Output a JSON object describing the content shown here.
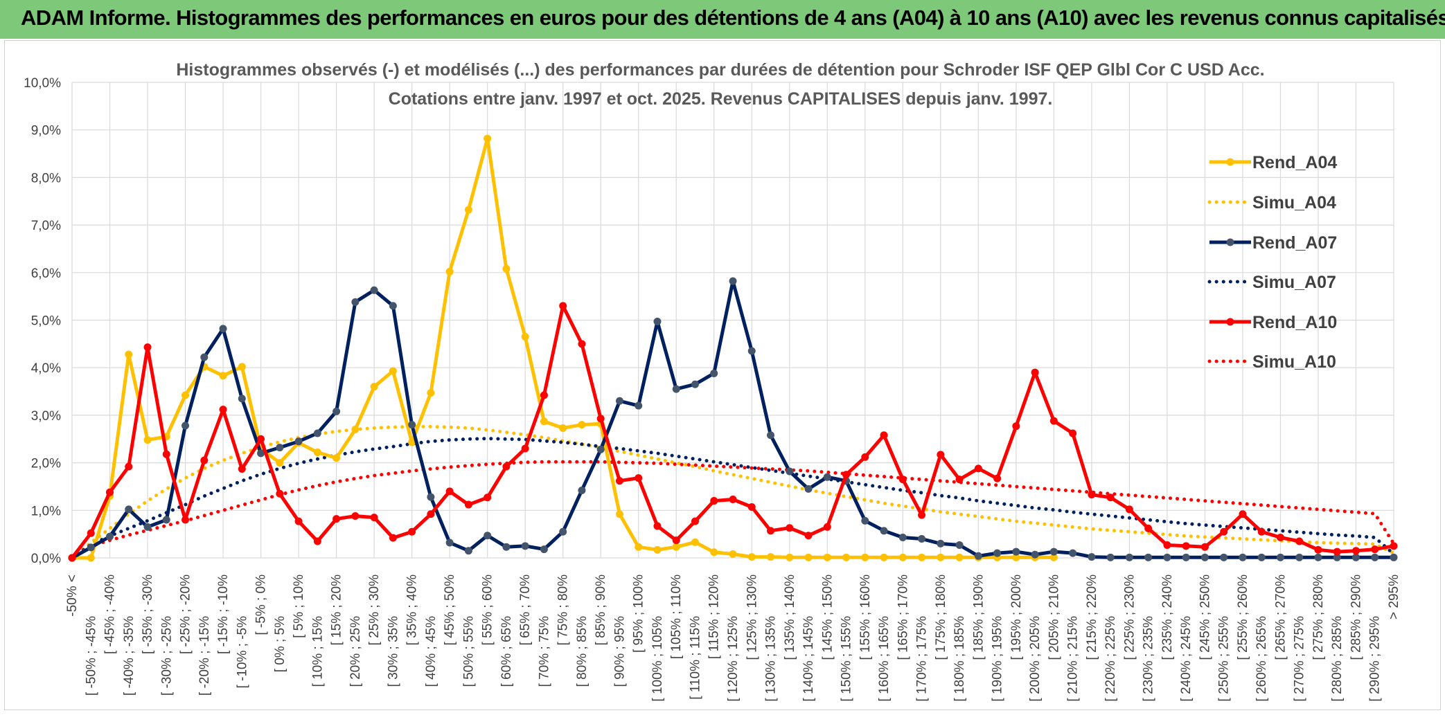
{
  "banner": {
    "title": "ADAM Informe. Histogrammes des performances en euros pour des détentions de 4 ans (A04) à 10 ans (A10) avec les revenus connus capitalisés"
  },
  "colors": {
    "banner": "#7ec87a",
    "A04": "#ffc000",
    "A07": "#002060",
    "A10": "#ff0000",
    "grid": "#d9d9d9"
  },
  "chart_data": {
    "type": "line",
    "title": "Histogrammes observés (-) et modélisés (...) des performances par durées de détention pour Schroder ISF QEP Glbl Cor C USD Acc.",
    "subtitle": "Cotations entre janv. 1997 et oct. 2025. Revenus CAPITALISES depuis janv. 1997.",
    "ylim": [
      0,
      10
    ],
    "yticks": [
      "0,0%",
      "1,0%",
      "2,0%",
      "3,0%",
      "4,0%",
      "5,0%",
      "6,0%",
      "7,0%",
      "8,0%",
      "9,0%",
      "10,0%"
    ],
    "categories": [
      "-50% <",
      "[ -50% ; -45%",
      "[ -45% ; -40%",
      "[ -40% ; -35%",
      "[ -35% ; -30%",
      "[ -30% ; -25%",
      "[ -25% ; -20%",
      "[ -20% ; -15%",
      "[ -15% ; -10%",
      "[ -10% ; -5%",
      "[ -5% ; 0%",
      "[ 0% ; 5%",
      "[ 5% ; 10%",
      "[ 10% ; 15%",
      "[ 15% ; 20%",
      "[ 20% ; 25%",
      "[ 25% ; 30%",
      "[ 30% ; 35%",
      "[ 35% ; 40%",
      "[ 40% ; 45%",
      "[ 45% ; 50%",
      "[ 50% ; 55%",
      "[ 55% ; 60%",
      "[ 60% ; 65%",
      "[ 65% ; 70%",
      "[ 70% ; 75%",
      "[ 75% ; 80%",
      "[ 80% ; 85%",
      "[ 85% ; 90%",
      "[ 90% ; 95%",
      "[ 95% ; 100%",
      "[ 100% ; 105%",
      "[ 105% ; 110%",
      "[ 110% ; 115%",
      "[ 115% ; 120%",
      "[ 120% ; 125%",
      "[ 125% ; 130%",
      "[ 130% ; 135%",
      "[ 135% ; 140%",
      "[ 140% ; 145%",
      "[ 145% ; 150%",
      "[ 150% ; 155%",
      "[ 155% ; 160%",
      "[ 160% ; 165%",
      "[ 165% ; 170%",
      "[ 170% ; 175%",
      "[ 175% ; 180%",
      "[ 180% ; 185%",
      "[ 185% ; 190%",
      "[ 190% ; 195%",
      "[ 195% ; 200%",
      "[ 200% ; 205%",
      "[ 205% ; 210%",
      "[ 210% ; 215%",
      "[ 215% ; 220%",
      "[ 220% ; 225%",
      "[ 225% ; 230%",
      "[ 230% ; 235%",
      "[ 235% ; 240%",
      "[ 240% ; 245%",
      "[ 245% ; 250%",
      "[ 250% ; 255%",
      "[ 255% ; 260%",
      "[ 260% ; 265%",
      "[ 265% ; 270%",
      "[ 270% ; 275%",
      "[ 275% ; 280%",
      "[ 280% ; 285%",
      "[ 285% ; 290%",
      "[ 290% ; 295%",
      "> 295%"
    ],
    "series": [
      {
        "name": "Rend_A04",
        "style": "solid",
        "color": "#ffc000",
        "values": [
          0,
          0,
          1.3,
          4.28,
          2.48,
          2.55,
          3.42,
          4.02,
          3.83,
          4.02,
          2.3,
          2.0,
          2.42,
          2.22,
          2.1,
          2.7,
          3.6,
          3.93,
          2.43,
          3.47,
          6.02,
          7.32,
          8.82,
          6.08,
          4.65,
          2.87,
          2.73,
          2.8,
          2.82,
          0.92,
          0.23,
          0.17,
          0.23,
          0.33,
          0.12,
          0.08,
          0.02,
          0.02,
          0.01,
          0.01,
          0.01,
          0.01,
          0.01,
          0.01,
          0.01,
          0.01,
          0.01,
          0.01,
          0.01,
          0.01,
          0.01,
          0.01,
          0.01,
          null,
          null,
          null,
          null,
          null,
          null,
          null,
          null,
          null,
          null,
          null,
          null,
          null,
          null,
          null,
          null,
          null,
          null
        ]
      },
      {
        "name": "Simu_A04",
        "style": "dotted",
        "color": "#ffc000",
        "values": [
          0,
          0.32,
          0.62,
          0.92,
          1.2,
          1.45,
          1.68,
          1.88,
          2.05,
          2.2,
          2.33,
          2.44,
          2.53,
          2.6,
          2.66,
          2.7,
          2.73,
          2.75,
          2.76,
          2.76,
          2.75,
          2.73,
          2.69,
          2.64,
          2.59,
          2.53,
          2.46,
          2.39,
          2.32,
          2.24,
          2.16,
          2.08,
          2.0,
          1.92,
          1.83,
          1.75,
          1.67,
          1.59,
          1.51,
          1.43,
          1.36,
          1.29,
          1.22,
          1.15,
          1.09,
          1.03,
          0.97,
          0.92,
          0.87,
          0.82,
          0.77,
          0.73,
          0.69,
          0.65,
          0.61,
          0.58,
          0.55,
          0.52,
          0.49,
          0.46,
          0.44,
          0.42,
          0.4,
          0.38,
          0.36,
          0.34,
          0.32,
          0.31,
          0.3,
          0.29,
          0.1
        ]
      },
      {
        "name": "Rend_A07",
        "style": "solid",
        "color": "#002060",
        "values": [
          0,
          0.22,
          0.45,
          1.02,
          0.65,
          0.8,
          2.78,
          4.22,
          4.82,
          3.35,
          2.2,
          2.32,
          2.45,
          2.62,
          3.08,
          5.38,
          5.63,
          5.3,
          2.8,
          1.28,
          0.32,
          0.15,
          0.47,
          0.23,
          0.25,
          0.18,
          0.55,
          1.42,
          2.28,
          3.3,
          3.2,
          4.97,
          3.55,
          3.65,
          3.88,
          5.82,
          4.35,
          2.58,
          1.82,
          1.45,
          1.7,
          1.62,
          0.78,
          0.57,
          0.43,
          0.4,
          0.3,
          0.27,
          0.04,
          0.1,
          0.13,
          0.07,
          0.13,
          0.1,
          0.02,
          0.01,
          0.01,
          0.01,
          0.01,
          0.01,
          0.01,
          0.01,
          0.01,
          0.01,
          0.01,
          0.01,
          0.01,
          0.01,
          0.01,
          0.01,
          0.01
        ]
      },
      {
        "name": "Simu_A07",
        "style": "dotted",
        "color": "#002060",
        "values": [
          0,
          0.28,
          0.46,
          0.62,
          0.78,
          0.95,
          1.12,
          1.3,
          1.46,
          1.62,
          1.76,
          1.88,
          1.99,
          2.08,
          2.16,
          2.23,
          2.29,
          2.34,
          2.4,
          2.45,
          2.48,
          2.5,
          2.51,
          2.5,
          2.49,
          2.46,
          2.43,
          2.39,
          2.34,
          2.3,
          2.25,
          2.2,
          2.14,
          2.08,
          2.02,
          1.96,
          1.9,
          1.84,
          1.78,
          1.72,
          1.66,
          1.6,
          1.54,
          1.48,
          1.42,
          1.37,
          1.31,
          1.26,
          1.2,
          1.15,
          1.1,
          1.05,
          1.01,
          0.96,
          0.92,
          0.88,
          0.84,
          0.8,
          0.76,
          0.72,
          0.69,
          0.66,
          0.63,
          0.6,
          0.57,
          0.54,
          0.51,
          0.48,
          0.46,
          0.43,
          0.08
        ]
      },
      {
        "name": "Rend_A10",
        "style": "solid",
        "color": "#ff0000",
        "values": [
          0,
          0.52,
          1.38,
          1.92,
          4.43,
          2.18,
          0.8,
          2.05,
          3.12,
          1.87,
          2.5,
          1.35,
          0.77,
          0.35,
          0.82,
          0.88,
          0.85,
          0.42,
          0.55,
          0.92,
          1.4,
          1.12,
          1.27,
          1.92,
          2.3,
          3.42,
          5.3,
          4.5,
          2.93,
          1.62,
          1.68,
          0.67,
          0.37,
          0.77,
          1.2,
          1.23,
          1.07,
          0.57,
          0.63,
          0.47,
          0.65,
          1.75,
          2.12,
          2.58,
          1.65,
          0.9,
          2.17,
          1.65,
          1.88,
          1.67,
          2.77,
          3.9,
          2.88,
          2.62,
          1.33,
          1.27,
          1.02,
          0.62,
          0.27,
          0.25,
          0.23,
          0.55,
          0.92,
          0.55,
          0.43,
          0.35,
          0.17,
          0.13,
          0.15,
          0.18,
          0.25
        ]
      },
      {
        "name": "Simu_A10",
        "style": "dotted",
        "color": "#ff0000",
        "values": [
          0,
          0.25,
          0.37,
          0.48,
          0.58,
          0.68,
          0.78,
          0.89,
          1.0,
          1.11,
          1.22,
          1.33,
          1.43,
          1.52,
          1.6,
          1.67,
          1.73,
          1.78,
          1.83,
          1.87,
          1.91,
          1.94,
          1.97,
          1.99,
          2.01,
          2.02,
          2.02,
          2.02,
          2.02,
          2.01,
          2.0,
          1.99,
          1.97,
          1.95,
          1.93,
          1.91,
          1.89,
          1.87,
          1.85,
          1.83,
          1.8,
          1.77,
          1.74,
          1.71,
          1.68,
          1.65,
          1.62,
          1.59,
          1.56,
          1.53,
          1.5,
          1.47,
          1.44,
          1.41,
          1.38,
          1.35,
          1.32,
          1.29,
          1.26,
          1.23,
          1.2,
          1.17,
          1.14,
          1.11,
          1.08,
          1.05,
          1.02,
          0.99,
          0.96,
          0.93,
          0.3
        ]
      }
    ],
    "legend_position": "right",
    "grid": true
  }
}
